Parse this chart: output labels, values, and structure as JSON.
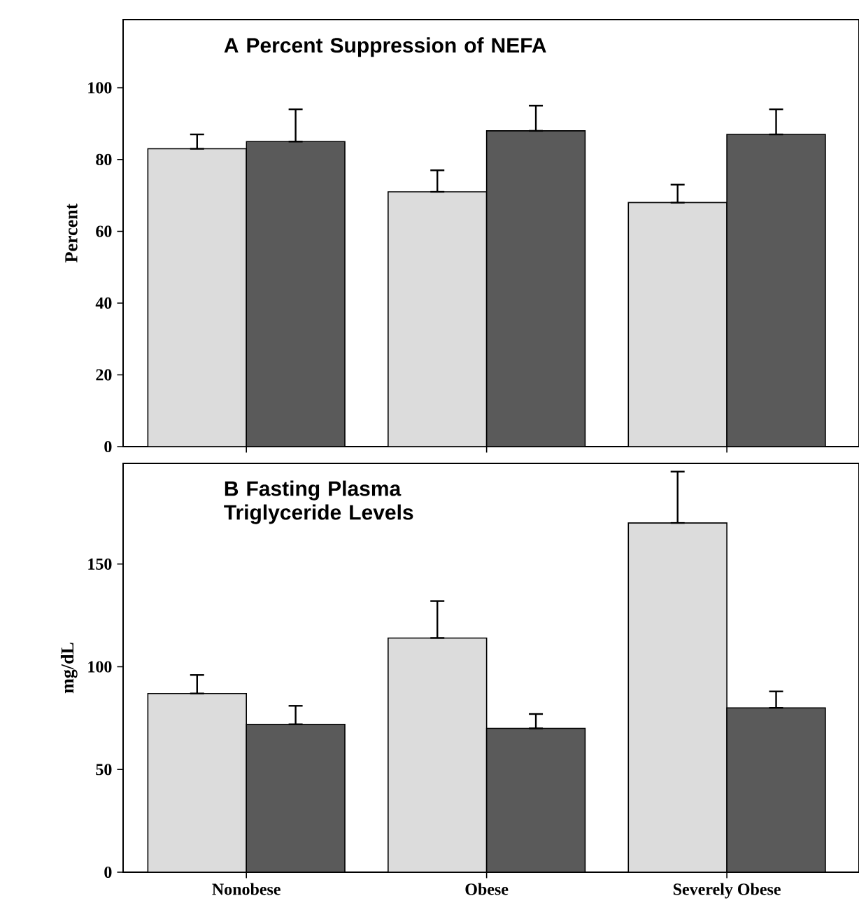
{
  "chart_data": [
    {
      "type": "bar",
      "title": "A Percent Suppression of NEFA",
      "ylabel": "Percent",
      "categories": [
        null,
        null,
        null
      ],
      "ylim": [
        0,
        119
      ],
      "yticks": [
        0,
        20,
        40,
        60,
        80,
        100
      ],
      "tick_labels": "y",
      "series": [
        {
          "color": "#dcdcdc",
          "values": [
            83,
            71,
            68
          ],
          "errors": [
            [
              83,
              87
            ],
            [
              71,
              77
            ],
            [
              68,
              73
            ]
          ]
        },
        {
          "color": "#5a5a5a",
          "values": [
            85,
            88,
            87
          ],
          "errors": [
            [
              85,
              94
            ],
            [
              88,
              95
            ],
            [
              87,
              94
            ]
          ]
        }
      ]
    },
    {
      "type": "bar",
      "title": "B Fasting Plasma Triglyceride Levels",
      "ylabel": "mg/dL",
      "categories": [
        "Nonobese",
        "Obese",
        "Severely Obese"
      ],
      "ylim": [
        0,
        199
      ],
      "yticks": [
        0,
        50,
        100,
        150
      ],
      "series": [
        {
          "color": "#dcdcdc",
          "values": [
            87,
            114,
            170
          ],
          "errors": [
            [
              87,
              96
            ],
            [
              114,
              132
            ],
            [
              170,
              195
            ]
          ]
        },
        {
          "color": "#5a5a5a",
          "values": [
            72,
            70,
            80
          ],
          "errors": [
            [
              72,
              81
            ],
            [
              70,
              77
            ],
            [
              80,
              88
            ]
          ]
        }
      ]
    }
  ]
}
